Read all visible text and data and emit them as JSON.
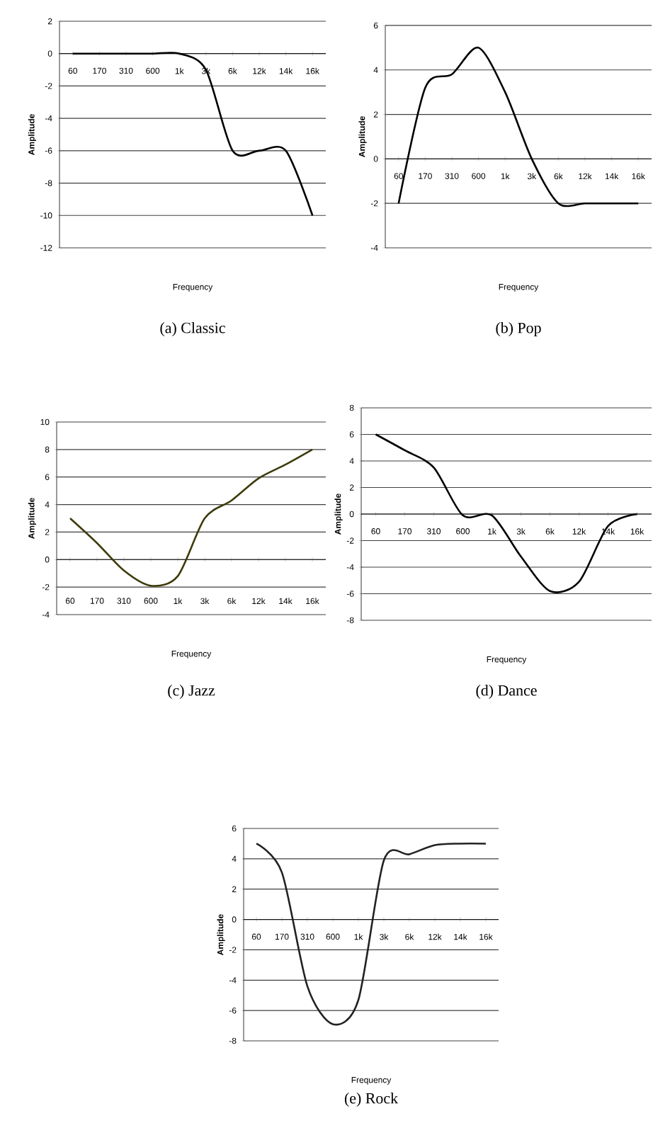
{
  "chart_data": [
    {
      "type": "line",
      "title": "(a) Classic",
      "xlabel": "Frequency",
      "ylabel": "Amplitude",
      "categories": [
        "60",
        "170",
        "310",
        "600",
        "1k",
        "3k",
        "6k",
        "12k",
        "14k",
        "16k"
      ],
      "series": [
        {
          "color": "#000000",
          "values": [
            0,
            0,
            0,
            0,
            0,
            -1,
            -6,
            -6,
            -6,
            -10
          ]
        }
      ],
      "ylim": [
        -12,
        2
      ],
      "yticks": [
        -12,
        -10,
        -8,
        -6,
        -4,
        -2,
        0,
        2
      ],
      "grid": "y",
      "marker": "none"
    },
    {
      "type": "line",
      "title": "(b) Pop",
      "xlabel": "Frequency",
      "ylabel": "Amplitude",
      "categories": [
        "60",
        "170",
        "310",
        "600",
        "1k",
        "3k",
        "6k",
        "12k",
        "14k",
        "16k"
      ],
      "series": [
        {
          "color": "#000000",
          "values": [
            -2,
            3.2,
            3.8,
            5,
            3,
            0,
            -2,
            -2,
            -2,
            -2
          ]
        }
      ],
      "ylim": [
        -4,
        6
      ],
      "yticks": [
        -4,
        -2,
        0,
        2,
        4,
        6
      ],
      "grid": "y",
      "marker": "none"
    },
    {
      "type": "line",
      "title": "(c) Jazz",
      "xlabel": "Frequency",
      "ylabel": "Amplitude",
      "categories": [
        "60",
        "170",
        "310",
        "600",
        "1k",
        "3k",
        "6k",
        "12k",
        "14k",
        "16k"
      ],
      "series": [
        {
          "color": "#3d3a0a",
          "values": [
            3,
            1.2,
            -0.8,
            -1.9,
            -1.2,
            3,
            4.3,
            5.9,
            6.9,
            8
          ]
        }
      ],
      "ylim": [
        -4,
        10
      ],
      "yticks": [
        -4,
        -2,
        0,
        2,
        4,
        6,
        8,
        10
      ],
      "grid": "y",
      "marker": "none"
    },
    {
      "type": "line",
      "title": "(d) Dance",
      "xlabel": "Frequency",
      "ylabel": "Amplitude",
      "categories": [
        "60",
        "170",
        "310",
        "600",
        "1k",
        "3k",
        "6k",
        "12k",
        "14k",
        "16k"
      ],
      "series": [
        {
          "color": "#000000",
          "values": [
            6,
            4.8,
            3.5,
            -0.1,
            -0.1,
            -3.2,
            -5.8,
            -5.1,
            -0.9,
            0
          ]
        }
      ],
      "ylim": [
        -8,
        8
      ],
      "yticks": [
        -8,
        -6,
        -4,
        -2,
        0,
        2,
        4,
        6,
        8
      ],
      "grid": "y",
      "marker": "none"
    },
    {
      "type": "line",
      "title": "(e) Rock",
      "xlabel": "Frequency",
      "ylabel": "Amplitude",
      "categories": [
        "60",
        "170",
        "310",
        "600",
        "1k",
        "3k",
        "6k",
        "12k",
        "14k",
        "16k"
      ],
      "series": [
        {
          "color": "#222222",
          "values": [
            5,
            3.1,
            -4.4,
            -6.9,
            -5.3,
            3.9,
            4.3,
            4.9,
            5,
            5
          ]
        }
      ],
      "ylim": [
        -8,
        6
      ],
      "yticks": [
        -8,
        -6,
        -4,
        -2,
        0,
        2,
        4,
        6
      ],
      "grid": "y",
      "marker": "none"
    }
  ]
}
